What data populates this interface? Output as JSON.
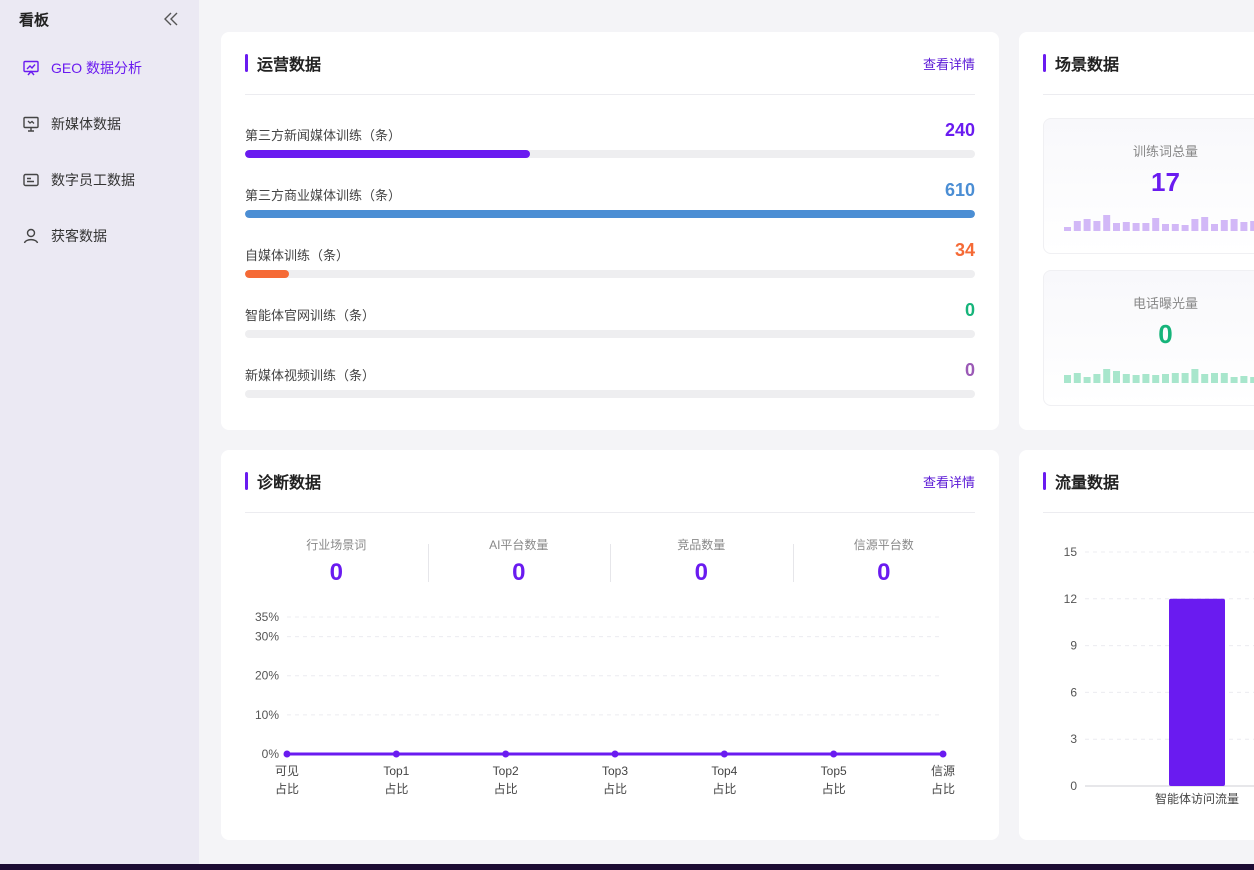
{
  "sidebar": {
    "title": "看板",
    "items": [
      {
        "label": "GEO 数据分析",
        "active": true,
        "icon": "chart-board-icon"
      },
      {
        "label": "新媒体数据",
        "active": false,
        "icon": "presentation-icon"
      },
      {
        "label": "数字员工数据",
        "active": false,
        "icon": "id-card-icon"
      },
      {
        "label": "获客数据",
        "active": false,
        "icon": "user-icon"
      }
    ]
  },
  "operations": {
    "title": "运营数据",
    "link": "查看详情",
    "rows": [
      {
        "label": "第三方新闻媒体训练（条）",
        "value": "240",
        "fill": 0.39,
        "color": "#6a1bf0"
      },
      {
        "label": "第三方商业媒体训练（条）",
        "value": "610",
        "fill": 1.0,
        "color": "#4b8ed4"
      },
      {
        "label": "自媒体训练（条）",
        "value": "34",
        "fill": 0.06,
        "color": "#f56a36"
      },
      {
        "label": "智能体官网训练（条）",
        "value": "0",
        "fill": 0,
        "color": "#16b47a"
      },
      {
        "label": "新媒体视频训练（条）",
        "value": "0",
        "fill": 0,
        "color": "#9b59b6"
      }
    ]
  },
  "scene": {
    "title": "场景数据",
    "stats": [
      {
        "label": "训练词总量",
        "value": "17",
        "color": "#6a1bf0",
        "bar_color": "#d2b8f7"
      },
      {
        "label": "电话曝光量",
        "value": "0",
        "color": "#16b47a",
        "bar_color": "#a8e6cc"
      }
    ]
  },
  "diagnosis": {
    "title": "诊断数据",
    "link": "查看详情",
    "stats": [
      {
        "label": "行业场景词",
        "value": "0"
      },
      {
        "label": "AI平台数量",
        "value": "0"
      },
      {
        "label": "竞品数量",
        "value": "0"
      },
      {
        "label": "信源平台数",
        "value": "0"
      }
    ]
  },
  "traffic": {
    "title": "流量数据"
  },
  "chart_data": [
    {
      "type": "line",
      "categories": [
        [
          "可见",
          "占比"
        ],
        [
          "Top1",
          "占比"
        ],
        [
          "Top2",
          "占比"
        ],
        [
          "Top3",
          "占比"
        ],
        [
          "Top4",
          "占比"
        ],
        [
          "Top5",
          "占比"
        ],
        [
          "信源",
          "占比"
        ]
      ],
      "values": [
        0,
        0,
        0,
        0,
        0,
        0,
        0
      ],
      "yticks": [
        "0%",
        "10%",
        "20%",
        "30%",
        "35%"
      ],
      "ytick_values": [
        0,
        10,
        20,
        30,
        35
      ],
      "ylim": [
        0,
        35
      ],
      "color": "#6a1bf0",
      "grid": true
    },
    {
      "type": "bar",
      "categories": [
        "智能体访问流量"
      ],
      "values": [
        12
      ],
      "yticks": [
        "0",
        "3",
        "6",
        "9",
        "12",
        "15"
      ],
      "ytick_values": [
        0,
        3,
        6,
        9,
        12,
        15
      ],
      "ylim": [
        0,
        15
      ],
      "color": "#6a1bf0",
      "grid": true
    }
  ]
}
